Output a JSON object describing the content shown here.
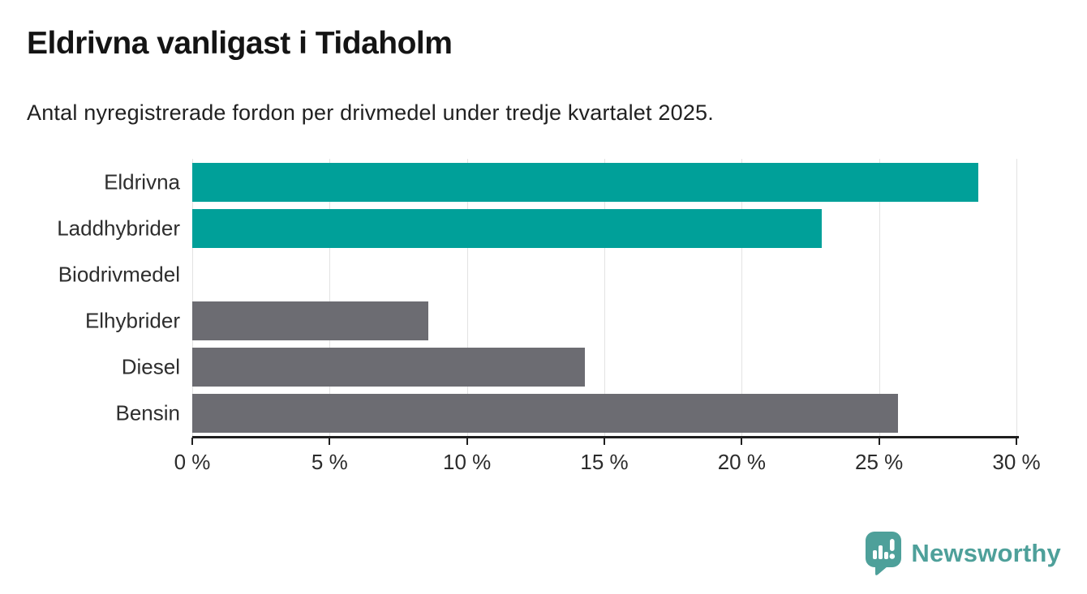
{
  "header": {
    "title": "Eldrivna vanligast i Tidaholm",
    "subtitle": "Antal nyregistrerade fordon per drivmedel under tredje kvartalet 2025."
  },
  "chart_data": {
    "type": "bar",
    "orientation": "horizontal",
    "title": "Eldrivna vanligast i Tidaholm",
    "subtitle": "Antal nyregistrerade fordon per drivmedel under tredje kvartalet 2025.",
    "categories": [
      "Eldrivna",
      "Laddhybrider",
      "Biodrivmedel",
      "Elhybrider",
      "Diesel",
      "Bensin"
    ],
    "values": [
      28.6,
      22.9,
      0,
      8.6,
      14.3,
      25.7
    ],
    "unit": "%",
    "bar_colors": [
      "#00A099",
      "#00A099",
      "#6C6C72",
      "#6C6C72",
      "#6C6C72",
      "#6C6C72"
    ],
    "xlabel": "",
    "ylabel": "",
    "xlim": [
      0,
      30
    ],
    "xticks": [
      0,
      5,
      10,
      15,
      20,
      25,
      30
    ],
    "xtick_labels": [
      "0 %",
      "5 %",
      "10 %",
      "15 %",
      "20 %",
      "25 %",
      "30 %"
    ],
    "grid": true,
    "legend": false
  },
  "colors": {
    "highlight_teal": "#00A099",
    "neutral_gray": "#6C6C72",
    "gridline": "#e3e3e3",
    "axis": "#1f1f1f",
    "logo_teal": "#4EA09A"
  },
  "footer": {
    "brand": "Newsworthy"
  }
}
